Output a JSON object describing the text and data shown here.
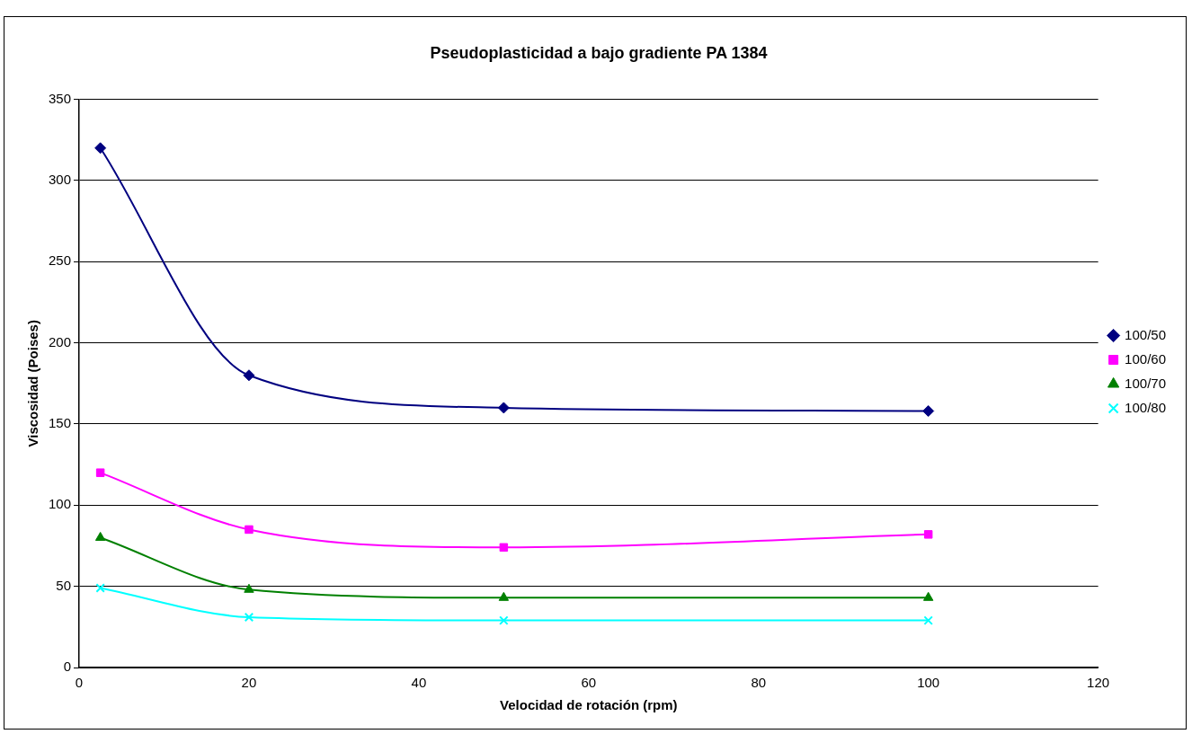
{
  "chart_data": {
    "type": "line",
    "title": "Pseudoplasticidad a bajo gradiente PA 1384",
    "xlabel": "Velocidad de rotación (rpm)",
    "ylabel": "Viscosidad (Poises)",
    "x": [
      2.5,
      20,
      50,
      100
    ],
    "series": [
      {
        "name": "100/50",
        "color": "#000080",
        "marker": "diamond",
        "values": [
          320,
          180,
          160,
          158
        ]
      },
      {
        "name": "100/60",
        "color": "#ff00ff",
        "marker": "square",
        "values": [
          120,
          85,
          74,
          82
        ]
      },
      {
        "name": "100/70",
        "color": "#008000",
        "marker": "triangle",
        "values": [
          80,
          48,
          43,
          43
        ]
      },
      {
        "name": "100/80",
        "color": "#00ffff",
        "marker": "cross",
        "values": [
          49,
          31,
          29,
          29
        ]
      }
    ],
    "xlim": [
      0,
      120
    ],
    "xticks": [
      0,
      20,
      40,
      60,
      80,
      100,
      120
    ],
    "ylim": [
      0,
      350
    ],
    "yticks": [
      0,
      50,
      100,
      150,
      200,
      250,
      300,
      350
    ],
    "grid": "y",
    "legend": "right",
    "line_style": "solid"
  }
}
